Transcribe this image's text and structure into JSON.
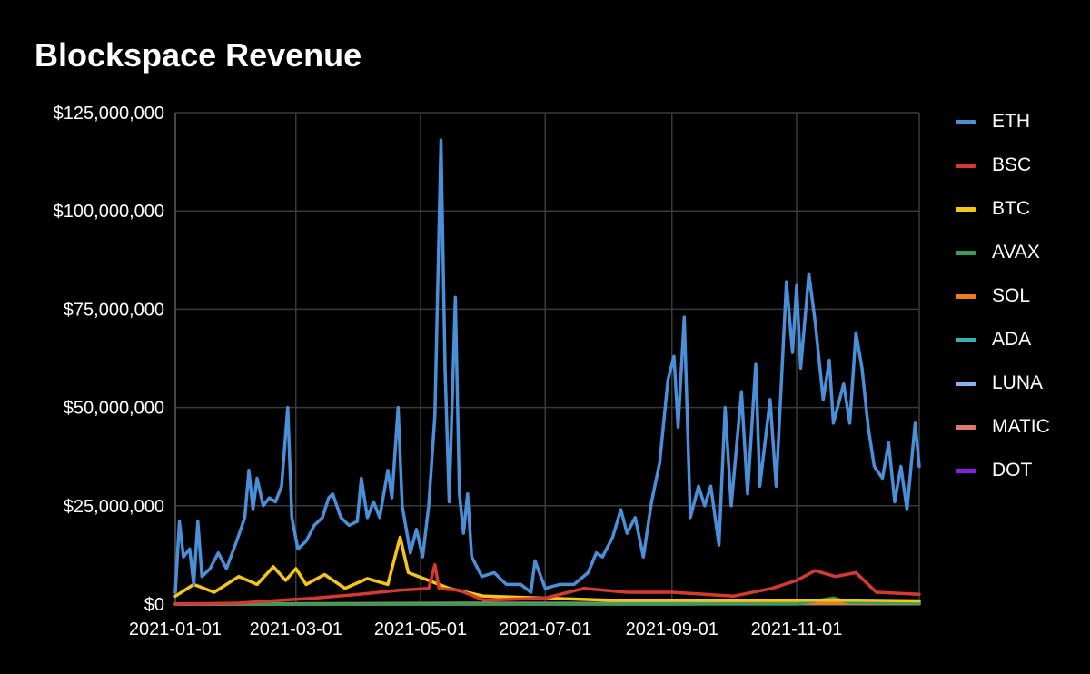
{
  "chart_data": {
    "type": "line",
    "title": "Blockspace Revenue",
    "xlabel": "",
    "ylabel": "",
    "ylim": [
      0,
      125000000
    ],
    "yticks": [
      {
        "value": 0,
        "label": "$0"
      },
      {
        "value": 25000000,
        "label": "$25,000,000"
      },
      {
        "value": 50000000,
        "label": "$50,000,000"
      },
      {
        "value": 75000000,
        "label": "$75,000,000"
      },
      {
        "value": 100000000,
        "label": "$100,000,000"
      },
      {
        "value": 125000000,
        "label": "$125,000,000"
      }
    ],
    "xrange": [
      "2021-01-01",
      "2021-12-31"
    ],
    "xticks": [
      "2021-01-01",
      "2021-03-01",
      "2021-05-01",
      "2021-07-01",
      "2021-09-01",
      "2021-11-01"
    ],
    "grid": true,
    "legend_position": "right",
    "series": [
      {
        "name": "ETH",
        "color": "#4a8fd8",
        "points": [
          [
            "2021-01-01",
            3000000
          ],
          [
            "2021-01-03",
            21000000
          ],
          [
            "2021-01-05",
            12000000
          ],
          [
            "2021-01-08",
            14000000
          ],
          [
            "2021-01-10",
            5000000
          ],
          [
            "2021-01-12",
            21000000
          ],
          [
            "2021-01-14",
            7000000
          ],
          [
            "2021-01-18",
            9000000
          ],
          [
            "2021-01-22",
            13000000
          ],
          [
            "2021-01-26",
            9000000
          ],
          [
            "2021-01-31",
            16000000
          ],
          [
            "2021-02-04",
            22000000
          ],
          [
            "2021-02-06",
            34000000
          ],
          [
            "2021-02-08",
            24000000
          ],
          [
            "2021-02-10",
            32000000
          ],
          [
            "2021-02-13",
            25000000
          ],
          [
            "2021-02-16",
            27000000
          ],
          [
            "2021-02-19",
            26000000
          ],
          [
            "2021-02-22",
            30000000
          ],
          [
            "2021-02-25",
            50000000
          ],
          [
            "2021-02-27",
            22000000
          ],
          [
            "2021-03-02",
            14000000
          ],
          [
            "2021-03-06",
            16000000
          ],
          [
            "2021-03-10",
            20000000
          ],
          [
            "2021-03-14",
            22000000
          ],
          [
            "2021-03-17",
            27000000
          ],
          [
            "2021-03-19",
            28000000
          ],
          [
            "2021-03-23",
            22000000
          ],
          [
            "2021-03-27",
            20000000
          ],
          [
            "2021-03-31",
            21000000
          ],
          [
            "2021-04-02",
            32000000
          ],
          [
            "2021-04-05",
            22000000
          ],
          [
            "2021-04-08",
            26000000
          ],
          [
            "2021-04-11",
            22000000
          ],
          [
            "2021-04-15",
            34000000
          ],
          [
            "2021-04-17",
            27000000
          ],
          [
            "2021-04-20",
            50000000
          ],
          [
            "2021-04-22",
            25000000
          ],
          [
            "2021-04-26",
            13000000
          ],
          [
            "2021-04-29",
            19000000
          ],
          [
            "2021-05-02",
            12000000
          ],
          [
            "2021-05-05",
            25000000
          ],
          [
            "2021-05-08",
            48000000
          ],
          [
            "2021-05-11",
            118000000
          ],
          [
            "2021-05-13",
            60000000
          ],
          [
            "2021-05-15",
            26000000
          ],
          [
            "2021-05-18",
            78000000
          ],
          [
            "2021-05-20",
            28000000
          ],
          [
            "2021-05-22",
            18000000
          ],
          [
            "2021-05-24",
            28000000
          ],
          [
            "2021-05-26",
            12000000
          ],
          [
            "2021-05-31",
            7000000
          ],
          [
            "2021-06-06",
            8000000
          ],
          [
            "2021-06-12",
            5000000
          ],
          [
            "2021-06-19",
            5000000
          ],
          [
            "2021-06-24",
            3000000
          ],
          [
            "2021-06-26",
            11000000
          ],
          [
            "2021-07-01",
            4000000
          ],
          [
            "2021-07-08",
            5000000
          ],
          [
            "2021-07-15",
            5000000
          ],
          [
            "2021-07-22",
            8000000
          ],
          [
            "2021-07-26",
            13000000
          ],
          [
            "2021-07-29",
            12000000
          ],
          [
            "2021-08-03",
            17000000
          ],
          [
            "2021-08-07",
            24000000
          ],
          [
            "2021-08-10",
            18000000
          ],
          [
            "2021-08-14",
            22000000
          ],
          [
            "2021-08-18",
            12000000
          ],
          [
            "2021-08-22",
            26000000
          ],
          [
            "2021-08-26",
            36000000
          ],
          [
            "2021-08-30",
            57000000
          ],
          [
            "2021-09-02",
            63000000
          ],
          [
            "2021-09-04",
            45000000
          ],
          [
            "2021-09-07",
            73000000
          ],
          [
            "2021-09-10",
            22000000
          ],
          [
            "2021-09-14",
            30000000
          ],
          [
            "2021-09-17",
            25000000
          ],
          [
            "2021-09-20",
            30000000
          ],
          [
            "2021-09-24",
            15000000
          ],
          [
            "2021-09-27",
            50000000
          ],
          [
            "2021-09-30",
            25000000
          ],
          [
            "2021-10-05",
            54000000
          ],
          [
            "2021-10-08",
            28000000
          ],
          [
            "2021-10-12",
            61000000
          ],
          [
            "2021-10-14",
            30000000
          ],
          [
            "2021-10-19",
            52000000
          ],
          [
            "2021-10-22",
            30000000
          ],
          [
            "2021-10-27",
            82000000
          ],
          [
            "2021-10-30",
            64000000
          ],
          [
            "2021-11-01",
            81000000
          ],
          [
            "2021-11-03",
            60000000
          ],
          [
            "2021-11-07",
            84000000
          ],
          [
            "2021-11-10",
            72000000
          ],
          [
            "2021-11-14",
            52000000
          ],
          [
            "2021-11-17",
            62000000
          ],
          [
            "2021-11-19",
            46000000
          ],
          [
            "2021-11-24",
            56000000
          ],
          [
            "2021-11-27",
            46000000
          ],
          [
            "2021-11-30",
            69000000
          ],
          [
            "2021-12-03",
            60000000
          ],
          [
            "2021-12-06",
            45000000
          ],
          [
            "2021-12-09",
            35000000
          ],
          [
            "2021-12-13",
            32000000
          ],
          [
            "2021-12-16",
            41000000
          ],
          [
            "2021-12-19",
            26000000
          ],
          [
            "2021-12-22",
            35000000
          ],
          [
            "2021-12-25",
            24000000
          ],
          [
            "2021-12-29",
            46000000
          ],
          [
            "2021-12-31",
            35000000
          ]
        ]
      },
      {
        "name": "BSC",
        "color": "#d63a2f",
        "points": [
          [
            "2021-01-01",
            0
          ],
          [
            "2021-01-31",
            200000
          ],
          [
            "2021-02-22",
            1000000
          ],
          [
            "2021-03-10",
            1500000
          ],
          [
            "2021-04-01",
            2500000
          ],
          [
            "2021-04-20",
            3500000
          ],
          [
            "2021-05-05",
            4000000
          ],
          [
            "2021-05-08",
            10000000
          ],
          [
            "2021-05-10",
            4000000
          ],
          [
            "2021-05-20",
            3500000
          ],
          [
            "2021-06-01",
            1000000
          ],
          [
            "2021-07-01",
            1500000
          ],
          [
            "2021-07-20",
            4000000
          ],
          [
            "2021-08-10",
            3000000
          ],
          [
            "2021-09-01",
            3000000
          ],
          [
            "2021-10-01",
            2000000
          ],
          [
            "2021-10-20",
            4000000
          ],
          [
            "2021-11-01",
            6000000
          ],
          [
            "2021-11-10",
            8500000
          ],
          [
            "2021-11-20",
            7000000
          ],
          [
            "2021-11-30",
            8000000
          ],
          [
            "2021-12-10",
            3000000
          ],
          [
            "2021-12-31",
            2500000
          ]
        ]
      },
      {
        "name": "BTC",
        "color": "#f5c518",
        "points": [
          [
            "2021-01-01",
            2000000
          ],
          [
            "2021-01-10",
            5000000
          ],
          [
            "2021-01-20",
            3000000
          ],
          [
            "2021-02-01",
            7000000
          ],
          [
            "2021-02-10",
            5000000
          ],
          [
            "2021-02-18",
            9500000
          ],
          [
            "2021-02-24",
            6000000
          ],
          [
            "2021-03-01",
            9000000
          ],
          [
            "2021-03-06",
            5000000
          ],
          [
            "2021-03-15",
            7500000
          ],
          [
            "2021-03-25",
            4000000
          ],
          [
            "2021-04-05",
            6500000
          ],
          [
            "2021-04-15",
            5000000
          ],
          [
            "2021-04-21",
            17000000
          ],
          [
            "2021-04-25",
            8000000
          ],
          [
            "2021-05-05",
            6000000
          ],
          [
            "2021-05-15",
            4000000
          ],
          [
            "2021-06-01",
            2000000
          ],
          [
            "2021-07-01",
            1500000
          ],
          [
            "2021-08-01",
            1000000
          ],
          [
            "2021-09-01",
            1000000
          ],
          [
            "2021-10-01",
            1000000
          ],
          [
            "2021-11-01",
            1000000
          ],
          [
            "2021-12-01",
            1000000
          ],
          [
            "2021-12-31",
            800000
          ]
        ]
      },
      {
        "name": "AVAX",
        "color": "#3b9d57",
        "points": [
          [
            "2021-01-01",
            0
          ],
          [
            "2021-11-01",
            0
          ],
          [
            "2021-11-19",
            1500000
          ],
          [
            "2021-11-27",
            400000
          ],
          [
            "2021-12-31",
            300000
          ]
        ]
      },
      {
        "name": "SOL",
        "color": "#f07c1e",
        "points": [
          [
            "2021-01-01",
            0
          ],
          [
            "2021-09-01",
            0
          ],
          [
            "2021-11-01",
            200000
          ],
          [
            "2021-12-31",
            200000
          ]
        ]
      },
      {
        "name": "ADA",
        "color": "#35b3b3",
        "points": [
          [
            "2021-01-01",
            0
          ],
          [
            "2021-12-31",
            100000
          ]
        ]
      },
      {
        "name": "LUNA",
        "color": "#8ab4f0",
        "points": [
          [
            "2021-01-01",
            0
          ],
          [
            "2021-12-31",
            200000
          ]
        ]
      },
      {
        "name": "MATIC",
        "color": "#e07a70",
        "points": [
          [
            "2021-01-01",
            0
          ],
          [
            "2021-06-01",
            200000
          ],
          [
            "2021-12-31",
            100000
          ]
        ]
      },
      {
        "name": "DOT",
        "color": "#8a1ee8",
        "points": [
          [
            "2021-01-01",
            100000
          ],
          [
            "2021-12-31",
            100000
          ]
        ]
      }
    ]
  }
}
